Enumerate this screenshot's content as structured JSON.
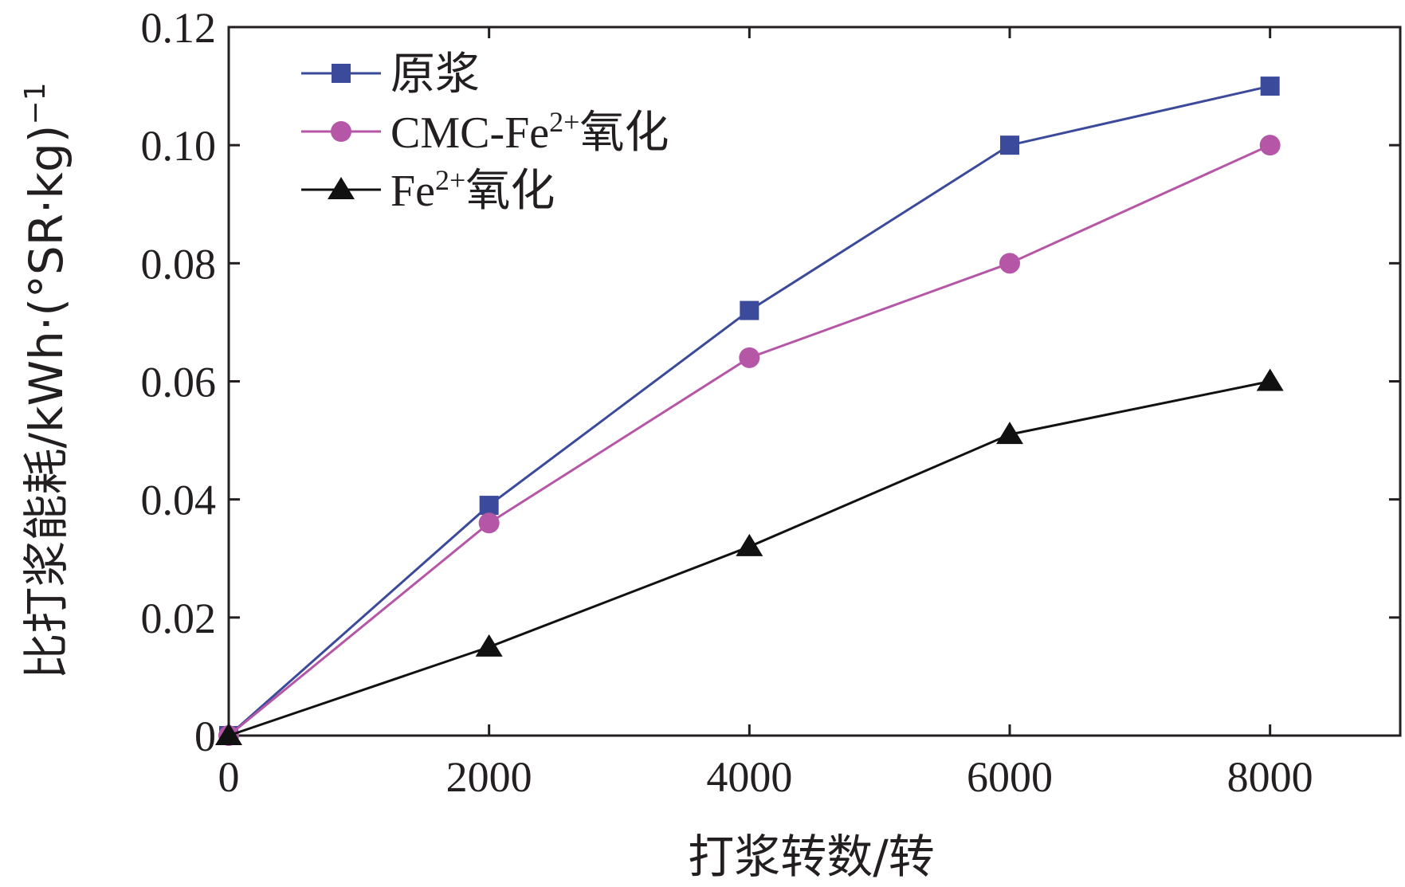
{
  "chart_data": {
    "type": "line",
    "title": "",
    "xlabel": "打浆转数/转",
    "ylabel": "比打浆能耗/kWh·(°SR·kg)",
    "ylabel_sup": "−1",
    "xlim": [
      0,
      9000
    ],
    "ylim": [
      0,
      0.12
    ],
    "x_ticks": [
      0,
      2000,
      4000,
      6000,
      8000
    ],
    "y_ticks": [
      0,
      0.02,
      0.04,
      0.06,
      0.08,
      0.1,
      0.12
    ],
    "x_tick_labels": [
      "0",
      "2000",
      "4000",
      "6000",
      "8000"
    ],
    "y_tick_labels": [
      "0",
      "0.02",
      "0.04",
      "0.06",
      "0.08",
      "0.10",
      "0.12"
    ],
    "grid": false,
    "legend_position": "top-left",
    "x": [
      0,
      2000,
      4000,
      6000,
      8000
    ],
    "series": [
      {
        "name": "原浆",
        "name_main": "原浆",
        "name_sup": "",
        "name_tail": "",
        "color": "#3b4a9a",
        "marker": "square",
        "values": [
          0,
          0.039,
          0.072,
          0.1,
          0.11
        ]
      },
      {
        "name": "CMC-Fe2+氧化",
        "name_main": "CMC-Fe",
        "name_sup": "2+",
        "name_tail": "氧化",
        "color": "#b556a6",
        "marker": "circle",
        "values": [
          0,
          0.036,
          0.064,
          0.08,
          0.1
        ]
      },
      {
        "name": "Fe2+氧化",
        "name_main": "Fe",
        "name_sup": "2+",
        "name_tail": "氧化",
        "color": "#111111",
        "marker": "triangle",
        "values": [
          0,
          0.015,
          0.032,
          0.051,
          0.06
        ]
      }
    ]
  }
}
